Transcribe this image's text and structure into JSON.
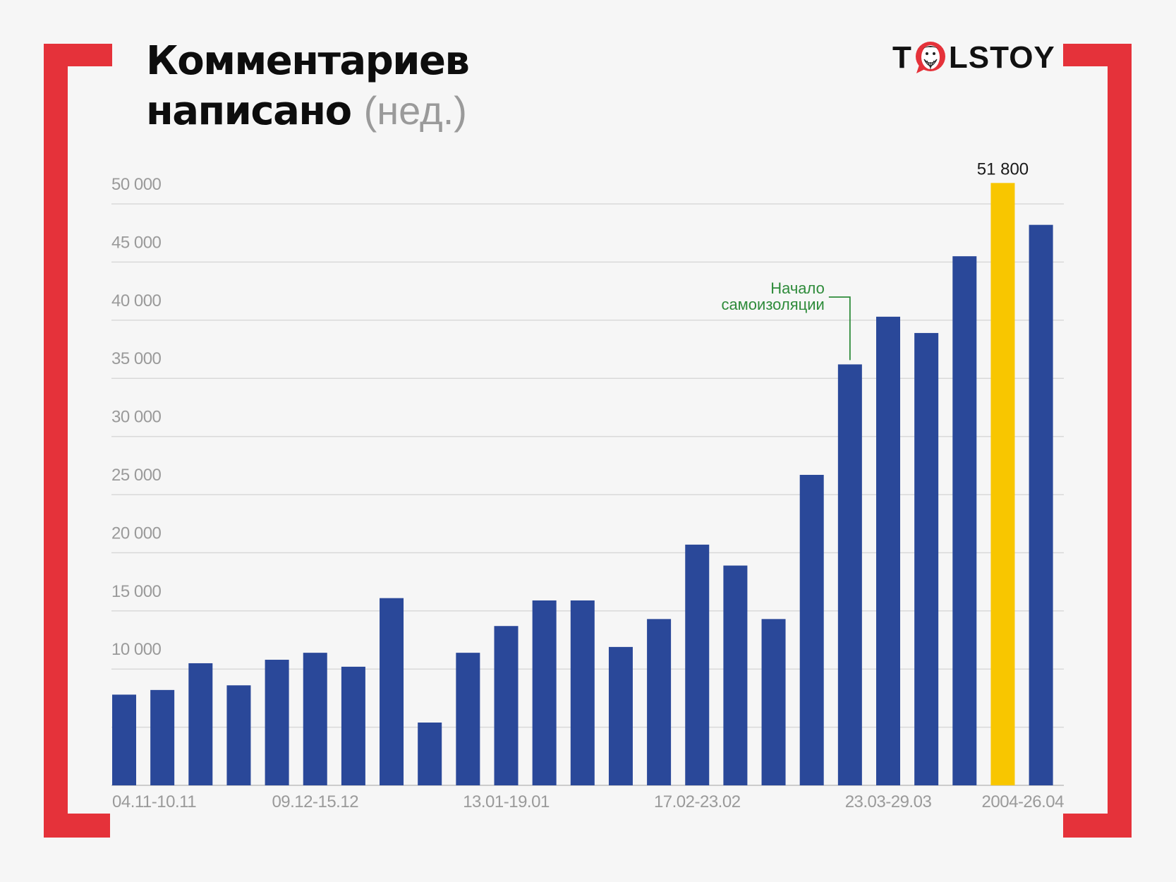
{
  "title_line1": "Комментариев",
  "title_line2": "написано",
  "title_unit": "(нед.)",
  "logo": {
    "left": "T",
    "right": "LSTOY",
    "icon": "tolstoy-face-icon"
  },
  "colors": {
    "bar": "#2a4899",
    "highlight": "#f8c600",
    "bracket": "#e5323a",
    "grid": "#d9d9d9",
    "tick": "#9a9a9a",
    "annotation": "#2e8b3a"
  },
  "chart_data": {
    "type": "bar",
    "ylim": [
      0,
      51800
    ],
    "grid": true,
    "yticks": [
      {
        "value": 10000,
        "label": "10 000"
      },
      {
        "value": 15000,
        "label": "15 000"
      },
      {
        "value": 20000,
        "label": "20 000"
      },
      {
        "value": 25000,
        "label": "25 000"
      },
      {
        "value": 30000,
        "label": "30 000"
      },
      {
        "value": 35000,
        "label": "35 000"
      },
      {
        "value": 40000,
        "label": "40 000"
      },
      {
        "value": 45000,
        "label": "45 000"
      },
      {
        "value": 50000,
        "label": "50 000"
      }
    ],
    "xticks": [
      {
        "index": 0,
        "label": "04.11-10.11"
      },
      {
        "index": 5,
        "label": "09.12-15.12"
      },
      {
        "index": 10,
        "label": "13.01-19.01"
      },
      {
        "index": 15,
        "label": "17.02-23.02"
      },
      {
        "index": 20,
        "label": "23.03-29.03"
      },
      {
        "index": 24,
        "label": "2004-26.04"
      }
    ],
    "values": [
      7800,
      8200,
      10500,
      8600,
      10800,
      11400,
      10200,
      16100,
      5400,
      11400,
      13700,
      15900,
      15900,
      11900,
      14300,
      20700,
      18900,
      14300,
      26700,
      36200,
      40300,
      38900,
      45500,
      51800,
      48200
    ],
    "highlight_index": 23,
    "data_labels": [
      {
        "index": 23,
        "label": "51 800"
      }
    ],
    "annotation": {
      "index": 19,
      "lines": [
        "Начало",
        "самоизоляции"
      ]
    }
  }
}
